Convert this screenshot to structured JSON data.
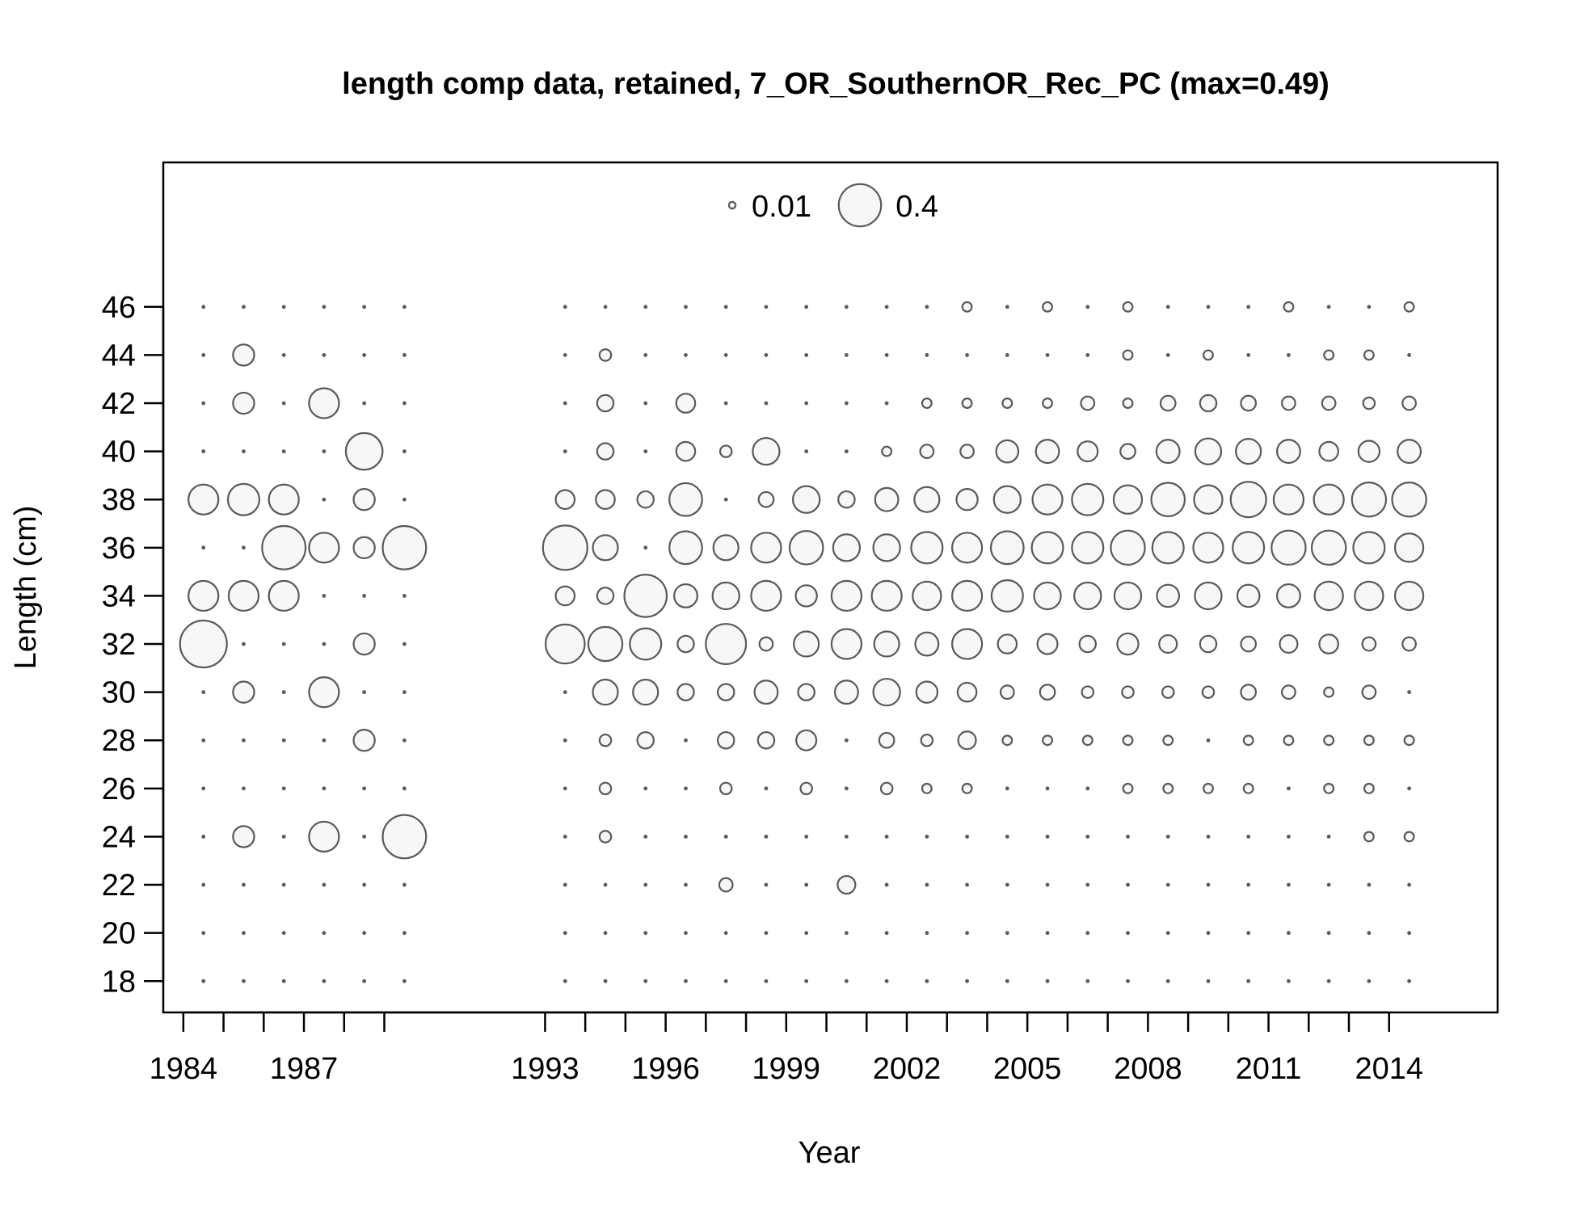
{
  "chart_data": {
    "type": "scatter",
    "subtype": "bubble",
    "title": "length comp data, retained, 7_OR_SouthernOR_Rec_PC (max=0.49)",
    "xlabel": "Year",
    "ylabel": "Length (cm)",
    "xlim": [
      1983.5,
      2016.7
    ],
    "ylim": [
      16.7,
      52
    ],
    "x_ticks": [
      1984,
      1985,
      1986,
      1987,
      1988,
      1989,
      1993,
      1994,
      1995,
      1996,
      1997,
      1998,
      1999,
      2000,
      2001,
      2002,
      2003,
      2004,
      2005,
      2006,
      2007,
      2008,
      2009,
      2010,
      2011,
      2012,
      2013,
      2014
    ],
    "x_tick_labels": [
      "1984",
      "1987",
      "1993",
      "1996",
      "1999",
      "2002",
      "2005",
      "2008",
      "2011",
      "2014"
    ],
    "y_ticks": [
      18,
      20,
      22,
      24,
      26,
      28,
      30,
      32,
      34,
      36,
      38,
      40,
      42,
      44,
      46
    ],
    "grid": false,
    "bubble_fill": "#f7f7f7",
    "bubble_stroke": "#595959",
    "max_value": 0.49,
    "legend": {
      "position": "top-center",
      "entries": [
        {
          "label": "0.01",
          "value": 0.01
        },
        {
          "label": "0.4",
          "value": 0.4
        }
      ]
    },
    "lengths": [
      18,
      20,
      22,
      24,
      26,
      28,
      30,
      32,
      34,
      36,
      38,
      40,
      42,
      44,
      46
    ],
    "years": [
      {
        "year": 1984.5,
        "values": [
          0.001,
          0.001,
          0.001,
          0.001,
          0.001,
          0.001,
          0.001,
          0.49,
          0.2,
          0.001,
          0.2,
          0.001,
          0.001,
          0.001,
          0.001
        ]
      },
      {
        "year": 1985.5,
        "values": [
          0.001,
          0.001,
          0.001,
          0.1,
          0.001,
          0.001,
          0.1,
          0.001,
          0.2,
          0.001,
          0.22,
          0.001,
          0.1,
          0.1,
          0.001
        ]
      },
      {
        "year": 1986.5,
        "values": [
          0.001,
          0.001,
          0.001,
          0.001,
          0.001,
          0.001,
          0.001,
          0.001,
          0.2,
          0.42,
          0.2,
          0.001,
          0.001,
          0.001,
          0.001
        ]
      },
      {
        "year": 1987.5,
        "values": [
          0.001,
          0.001,
          0.001,
          0.2,
          0.001,
          0.001,
          0.2,
          0.001,
          0.001,
          0.2,
          0.001,
          0.001,
          0.2,
          0.001,
          0.001
        ]
      },
      {
        "year": 1988.5,
        "values": [
          0.001,
          0.001,
          0.001,
          0.001,
          0.001,
          0.1,
          0.001,
          0.1,
          0.001,
          0.1,
          0.1,
          0.3,
          0.001,
          0.001,
          0.001
        ]
      },
      {
        "year": 1989.5,
        "values": [
          0.001,
          0.001,
          0.001,
          0.42,
          0.001,
          0.001,
          0.001,
          0.001,
          0.001,
          0.42,
          0.001,
          0.001,
          0.001,
          0.001,
          0.001
        ]
      },
      {
        "year": 1993.5,
        "values": [
          0.001,
          0.001,
          0.001,
          0.001,
          0.001,
          0.001,
          0.001,
          0.34,
          0.08,
          0.44,
          0.08,
          0.001,
          0.001,
          0.001,
          0.001
        ]
      },
      {
        "year": 1994.5,
        "values": [
          0.001,
          0.001,
          0.001,
          0.03,
          0.03,
          0.03,
          0.14,
          0.26,
          0.06,
          0.14,
          0.08,
          0.06,
          0.06,
          0.03,
          0.001
        ]
      },
      {
        "year": 1995.5,
        "values": [
          0.001,
          0.001,
          0.001,
          0.001,
          0.001,
          0.06,
          0.14,
          0.22,
          0.4,
          0.001,
          0.06,
          0.001,
          0.001,
          0.001,
          0.001
        ]
      },
      {
        "year": 1996.5,
        "values": [
          0.001,
          0.001,
          0.001,
          0.001,
          0.001,
          0.001,
          0.06,
          0.06,
          0.12,
          0.24,
          0.24,
          0.08,
          0.08,
          0.001,
          0.001
        ]
      },
      {
        "year": 1997.5,
        "values": [
          0.001,
          0.001,
          0.04,
          0.001,
          0.03,
          0.06,
          0.06,
          0.36,
          0.16,
          0.14,
          0.001,
          0.03,
          0.001,
          0.001,
          0.001
        ]
      },
      {
        "year": 1998.5,
        "values": [
          0.001,
          0.001,
          0.001,
          0.001,
          0.001,
          0.06,
          0.12,
          0.04,
          0.2,
          0.2,
          0.05,
          0.16,
          0.001,
          0.001,
          0.001
        ]
      },
      {
        "year": 1999.5,
        "values": [
          0.001,
          0.001,
          0.001,
          0.001,
          0.03,
          0.09,
          0.06,
          0.14,
          0.1,
          0.25,
          0.16,
          0.001,
          0.001,
          0.001,
          0.001
        ]
      },
      {
        "year": 2000.5,
        "values": [
          0.001,
          0.001,
          0.07,
          0.001,
          0.001,
          0.001,
          0.12,
          0.2,
          0.2,
          0.16,
          0.06,
          0.001,
          0.001,
          0.001,
          0.001
        ]
      },
      {
        "year": 2001.5,
        "values": [
          0.001,
          0.001,
          0.001,
          0.001,
          0.03,
          0.05,
          0.16,
          0.14,
          0.2,
          0.16,
          0.12,
          0.02,
          0.001,
          0.001,
          0.001
        ]
      },
      {
        "year": 2002.5,
        "values": [
          0.001,
          0.001,
          0.001,
          0.001,
          0.02,
          0.03,
          0.1,
          0.12,
          0.18,
          0.22,
          0.14,
          0.04,
          0.02,
          0.001,
          0.001
        ]
      },
      {
        "year": 2003.5,
        "values": [
          0.001,
          0.001,
          0.001,
          0.001,
          0.02,
          0.07,
          0.08,
          0.2,
          0.2,
          0.2,
          0.1,
          0.04,
          0.02,
          0.001,
          0.02
        ]
      },
      {
        "year": 2004.5,
        "values": [
          0.001,
          0.001,
          0.001,
          0.001,
          0.001,
          0.02,
          0.04,
          0.08,
          0.22,
          0.24,
          0.16,
          0.11,
          0.02,
          0.001,
          0.001
        ]
      },
      {
        "year": 2005.5,
        "values": [
          0.001,
          0.001,
          0.001,
          0.001,
          0.001,
          0.02,
          0.05,
          0.09,
          0.16,
          0.22,
          0.2,
          0.12,
          0.02,
          0.001,
          0.02
        ]
      },
      {
        "year": 2006.5,
        "values": [
          0.001,
          0.001,
          0.001,
          0.001,
          0.001,
          0.02,
          0.03,
          0.06,
          0.16,
          0.22,
          0.22,
          0.09,
          0.04,
          0.001,
          0.001
        ]
      },
      {
        "year": 2007.5,
        "values": [
          0.001,
          0.001,
          0.001,
          0.001,
          0.02,
          0.02,
          0.03,
          0.1,
          0.16,
          0.26,
          0.18,
          0.05,
          0.02,
          0.02,
          0.02
        ]
      },
      {
        "year": 2008.5,
        "values": [
          0.001,
          0.001,
          0.001,
          0.001,
          0.02,
          0.02,
          0.03,
          0.07,
          0.11,
          0.22,
          0.25,
          0.12,
          0.05,
          0.001,
          0.001
        ]
      },
      {
        "year": 2009.5,
        "values": [
          0.001,
          0.001,
          0.001,
          0.001,
          0.02,
          0.001,
          0.03,
          0.06,
          0.16,
          0.2,
          0.18,
          0.15,
          0.06,
          0.02,
          0.001
        ]
      },
      {
        "year": 2010.5,
        "values": [
          0.001,
          0.001,
          0.001,
          0.001,
          0.02,
          0.02,
          0.05,
          0.05,
          0.11,
          0.22,
          0.28,
          0.14,
          0.05,
          0.001,
          0.001
        ]
      },
      {
        "year": 2011.5,
        "values": [
          0.001,
          0.001,
          0.001,
          0.001,
          0.001,
          0.02,
          0.04,
          0.07,
          0.12,
          0.26,
          0.2,
          0.12,
          0.04,
          0.001,
          0.02
        ]
      },
      {
        "year": 2012.5,
        "values": [
          0.001,
          0.001,
          0.001,
          0.001,
          0.02,
          0.02,
          0.02,
          0.08,
          0.18,
          0.26,
          0.2,
          0.08,
          0.04,
          0.02,
          0.001
        ]
      },
      {
        "year": 2013.5,
        "values": [
          0.001,
          0.001,
          0.001,
          0.02,
          0.02,
          0.02,
          0.04,
          0.04,
          0.18,
          0.22,
          0.26,
          0.1,
          0.03,
          0.02,
          0.001
        ]
      },
      {
        "year": 2014.5,
        "values": [
          0.001,
          0.001,
          0.001,
          0.02,
          0.001,
          0.02,
          0.001,
          0.04,
          0.18,
          0.18,
          0.26,
          0.12,
          0.04,
          0.001,
          0.02
        ]
      }
    ]
  }
}
